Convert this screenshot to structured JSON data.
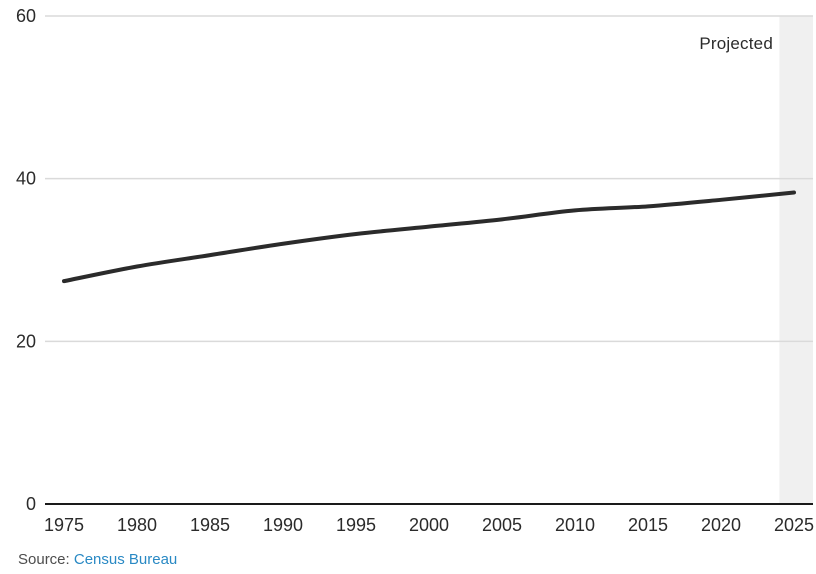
{
  "chart_data": {
    "type": "line",
    "title": "",
    "xlabel": "",
    "ylabel": "",
    "x": [
      1975,
      1980,
      1985,
      1990,
      1995,
      2000,
      2005,
      2010,
      2015,
      2020,
      2025
    ],
    "series": [
      {
        "name": "value",
        "values": [
          27.4,
          29.2,
          30.6,
          32.0,
          33.2,
          34.1,
          35.0,
          36.1,
          36.6,
          37.4,
          38.3
        ]
      }
    ],
    "ylim": [
      0,
      60
    ],
    "xlim": [
      1975,
      2025
    ],
    "yticks": [
      0,
      20,
      40,
      60
    ],
    "xticks": [
      1975,
      1980,
      1985,
      1990,
      1995,
      2000,
      2005,
      2010,
      2015,
      2020,
      2025
    ],
    "grid": "horizontal-light",
    "legend": "none",
    "projected_band": {
      "x_start_year": 2024,
      "label": "Projected"
    }
  },
  "annotations": {
    "projected": "Projected"
  },
  "footer": {
    "source_prefix": "Source:",
    "source_link": "Census Bureau"
  },
  "colors": {
    "line": "#2b2b2b",
    "grid": "#dadada",
    "axis": "#1a1a1a",
    "band": "#f0f0f0",
    "tick_text": "#2b2b2b",
    "source_text": "#4d4d4d",
    "link": "#2989c4",
    "background": "#ffffff"
  }
}
